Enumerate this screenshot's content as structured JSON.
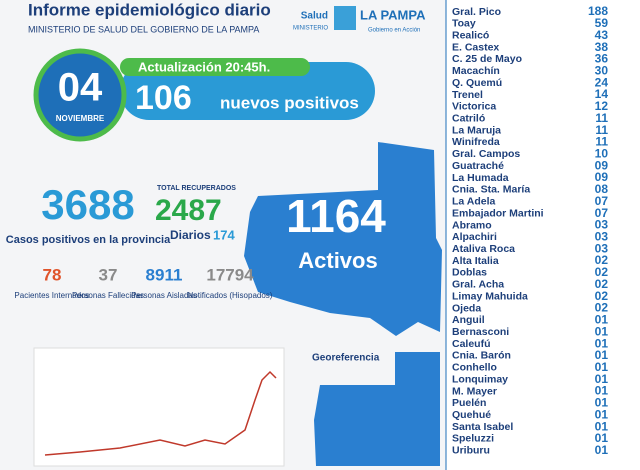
{
  "header": {
    "title": "Informe epidemiológico diario",
    "subtitle": "MINISTERIO DE SALUD DEL GOBIERNO DE LA PAMPA",
    "logo_salud": "Salud",
    "logo_ministerio": "MINISTERIO",
    "logo_pampa": "LA PAMPA",
    "logo_slogan": "Gobierno en Acción"
  },
  "date": {
    "day": "04",
    "month": "NOVIEMBRE"
  },
  "update": "Actualización 20:45h.",
  "new_cases": {
    "value": "106",
    "label": "nuevos positivos"
  },
  "stats": {
    "total": "3688",
    "total_label": "Casos positivos en la provincia",
    "recovered_label": "TOTAL RECUPERADOS",
    "recovered": "2487",
    "daily_label": "Diarios",
    "daily": "174",
    "active": "1164",
    "active_label": "Activos"
  },
  "small_stats": [
    {
      "value": "78",
      "label": "Pacientes Internados"
    },
    {
      "value": "37",
      "label": "Personas Fallecidas"
    },
    {
      "value": "8911",
      "label": "Personas Aisladas"
    },
    {
      "value": "17794",
      "label": "Notificados (Hisopados)"
    }
  ],
  "geo_label": "Georeferencia",
  "localities": [
    [
      "Gral. Pico",
      "188"
    ],
    [
      "Toay",
      "59"
    ],
    [
      "Realicó",
      "43"
    ],
    [
      "E. Castex",
      "38"
    ],
    [
      "C. 25 de Mayo",
      "36"
    ],
    [
      "Macachín",
      "30"
    ],
    [
      "Q. Quemú",
      "24"
    ],
    [
      "Trenel",
      "14"
    ],
    [
      "Victorica",
      "12"
    ],
    [
      "Catriló",
      "11"
    ],
    [
      "La Maruja",
      "11"
    ],
    [
      "Winifreda",
      "11"
    ],
    [
      "Gral. Campos",
      "10"
    ],
    [
      "Guatraché",
      "09"
    ],
    [
      "La Humada",
      "09"
    ],
    [
      "Cnia. Sta. María",
      "08"
    ],
    [
      "La Adela",
      "07"
    ],
    [
      "Embajador Martini",
      "07"
    ],
    [
      "Abramo",
      "03"
    ],
    [
      "Alpachiri",
      "03"
    ],
    [
      "Ataliva Roca",
      "03"
    ],
    [
      "Alta Italia",
      "02"
    ],
    [
      "Doblas",
      "02"
    ],
    [
      "Gral. Acha",
      "02"
    ],
    [
      "Limay Mahuida",
      "02"
    ],
    [
      "Ojeda",
      "02"
    ],
    [
      "Anguil",
      "01"
    ],
    [
      "Bernasconi",
      "01"
    ],
    [
      "Caleufú",
      "01"
    ],
    [
      "Cnia. Barón",
      "01"
    ],
    [
      "Conhello",
      "01"
    ],
    [
      "Lonquimay",
      "01"
    ],
    [
      "M. Mayer",
      "01"
    ],
    [
      "Puelén",
      "01"
    ],
    [
      "Quehué",
      "01"
    ],
    [
      "Santa Isabel",
      "01"
    ],
    [
      "Speluzzi",
      "01"
    ],
    [
      "Uriburu",
      "01"
    ]
  ]
}
